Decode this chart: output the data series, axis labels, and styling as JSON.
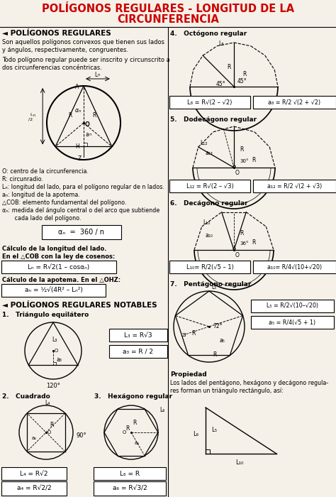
{
  "bg_color": "#f5f0e8",
  "title_line1": "POLÍGONOS REGULARES - LONGITUD DE LA",
  "title_line2": "CIRCUNFERENCIA",
  "title_color": "#cc0000",
  "title_fontsize": 10.5,
  "section1_title": "◄ POLÍGONOS REGULARES",
  "section1_body1": "Son aquellos polígonos convexos que tienen sus lados",
  "section1_body2": "y ángulos, respectivamente, congruentes.",
  "section1_body3": "Todo polígono regular puede ser inscrito y circunscrito a",
  "section1_body4": "dos circunferencias concéntricas.",
  "legend_lines": [
    "O: centro de la circunferencia.",
    "R: circunradio.",
    "Lₙ: longitud del lado, para el polígono regular de n lados.",
    "aₙ: longitud de la apotema.",
    "△COB: elemento fundamental del polígono.",
    "αₙ: medida del ángulo central o del arco que subtiende",
    "       cada lado del polígono."
  ],
  "section2_title": "◄ POLÍGONOS REGULARES NOTABLES",
  "poly1_title": "1.   Triángulo equilátero",
  "poly2_title": "2.   Cuadrado",
  "poly3_title": "3.   Hexágono regular",
  "right_title4": "4.   Octógono regular",
  "right_title5": "5.   Dodecágono regular",
  "right_title6": "6.   Decágono regular",
  "right_title7": "7.   Pentágono regular",
  "prop_title": "Propiedad",
  "prop_body1": "Los lados del pentágono, hexágono y decágono regula-",
  "prop_body2": "res forman un triángulo rectángulo, así:"
}
